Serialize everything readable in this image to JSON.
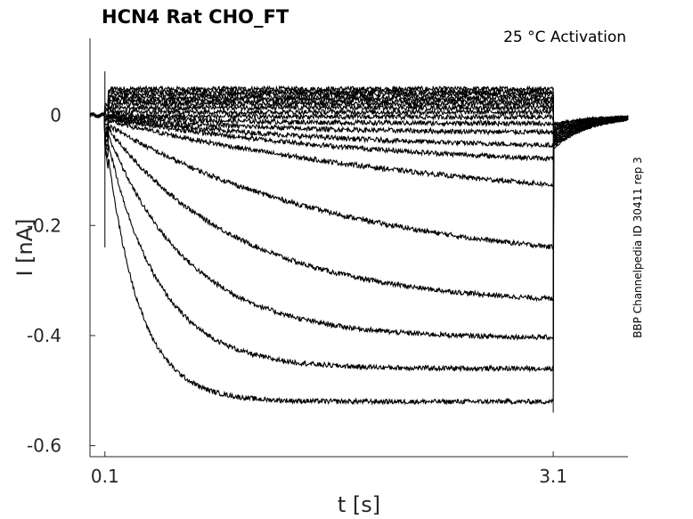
{
  "chart_data": {
    "type": "line",
    "title": "HCN4  Rat  CHO_FT",
    "annotation": "25 °C  Activation",
    "side_label": "BBP Channelpedia ID 30411 rep 3",
    "xlabel": "t [s]",
    "ylabel": "I [nA]",
    "xlim": [
      0.0,
      3.6
    ],
    "ylim": [
      -0.62,
      0.14
    ],
    "x_ticks": [
      0.1,
      3.1
    ],
    "x_tick_labels": [
      "0.1",
      "3.1"
    ],
    "y_ticks": [
      0,
      -0.2,
      -0.4,
      -0.6
    ],
    "y_tick_labels": [
      "0",
      "-0.2",
      "-0.4",
      "-0.6"
    ],
    "grid": false,
    "legend": "none",
    "line_color": "#000000",
    "pulse": {
      "start": 0.1,
      "end": 3.1
    },
    "series": [
      {
        "steady": 0.048,
        "tau": 0.6
      },
      {
        "steady": 0.043,
        "tau": 0.6
      },
      {
        "steady": 0.038,
        "tau": 0.6
      },
      {
        "steady": 0.032,
        "tau": 0.6
      },
      {
        "steady": 0.027,
        "tau": 0.6
      },
      {
        "steady": 0.021,
        "tau": 0.6
      },
      {
        "steady": 0.014,
        "tau": 0.6
      },
      {
        "steady": 0.006,
        "tau": 0.6
      },
      {
        "steady": -0.003,
        "tau": 0.7
      },
      {
        "steady": -0.015,
        "tau": 0.8
      },
      {
        "steady": -0.032,
        "tau": 1.0
      },
      {
        "steady": -0.062,
        "tau": 1.5
      },
      {
        "steady": -0.1,
        "tau": 2.0
      },
      {
        "steady": -0.18,
        "tau": 2.6
      },
      {
        "steady": -0.28,
        "tau": 1.6
      },
      {
        "steady": -0.345,
        "tau": 0.9
      },
      {
        "steady": -0.405,
        "tau": 0.55
      },
      {
        "steady": -0.46,
        "tau": 0.35
      },
      {
        "steady": -0.52,
        "tau": 0.22
      }
    ]
  }
}
